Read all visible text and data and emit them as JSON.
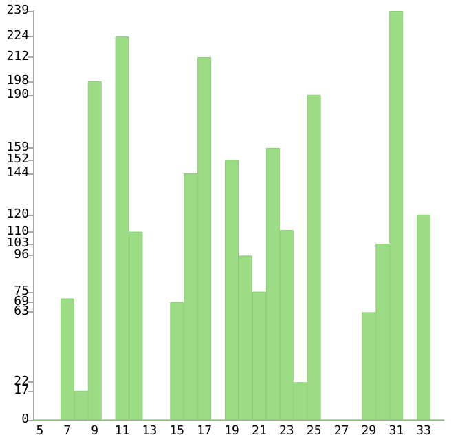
{
  "chart_data": {
    "type": "bar",
    "categories": [
      "5",
      null,
      "7",
      null,
      "9",
      null,
      "11",
      null,
      "13",
      null,
      "15",
      null,
      "17",
      null,
      "19",
      null,
      "21",
      null,
      "23",
      null,
      "25",
      null,
      "27",
      null,
      "29",
      null,
      "31",
      null,
      "33",
      null
    ],
    "values": [
      0,
      0,
      71,
      17,
      198,
      0,
      224,
      110,
      0,
      0,
      69,
      144,
      212,
      0,
      152,
      96,
      75,
      159,
      111,
      22,
      190,
      0,
      0,
      0,
      63,
      103,
      239,
      0,
      120,
      0
    ],
    "color": "#9bdc84",
    "ylim": [
      0,
      239
    ],
    "yticks": [
      0,
      17,
      22,
      63,
      69,
      75,
      96,
      103,
      110,
      120,
      144,
      152,
      159,
      190,
      198,
      212,
      224,
      239
    ],
    "grid": false
  }
}
